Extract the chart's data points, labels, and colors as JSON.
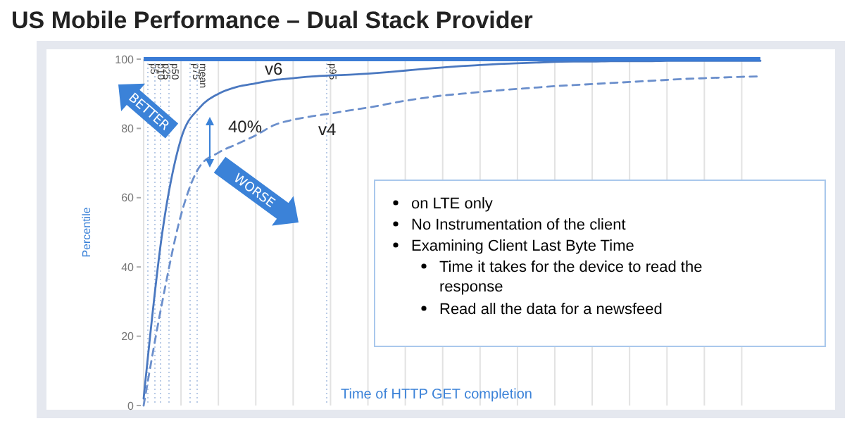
{
  "chart_data": {
    "type": "line",
    "title": "US Mobile Performance – Dual Stack Provider",
    "xlabel": "Time of HTTP GET completion",
    "ylabel": "Percentile",
    "categories": [
      null,
      null,
      null,
      null,
      null,
      null,
      null,
      null,
      null,
      null,
      null,
      null,
      null,
      null,
      null,
      null,
      null,
      null,
      null,
      null,
      null,
      null,
      null,
      null,
      null,
      null,
      null,
      null,
      null,
      null,
      null,
      null,
      null,
      null
    ],
    "series": [
      {
        "name": "v6",
        "color": "#4a78c0",
        "line_style": "solid",
        "values": [
          2,
          50,
          77,
          86,
          90,
          92,
          93,
          94,
          94.5,
          95,
          95.3,
          95.5,
          95.8,
          96.2,
          96.7,
          97.2,
          97.6,
          98,
          98.3,
          98.6,
          98.8,
          99,
          99.2,
          99.3,
          99.3,
          99.4,
          99.4,
          99.4,
          99.5,
          99.5,
          99.5,
          99.5,
          99.5,
          99.5
        ]
      },
      {
        "name": "v4",
        "color": "#6b8fcc",
        "line_style": "dashed",
        "values": [
          0,
          30,
          55,
          69,
          73,
          75.5,
          78,
          81,
          82.5,
          83.5,
          84.3,
          85.2,
          86,
          87,
          88,
          88.8,
          89.5,
          90,
          90.5,
          91,
          91.4,
          91.8,
          92.2,
          92.5,
          92.8,
          93.1,
          93.4,
          93.7,
          94,
          94.3,
          94.5,
          94.7,
          94.9,
          95
        ]
      }
    ],
    "ylim": [
      0,
      100
    ],
    "yticks": [
      0,
      20,
      40,
      60,
      80,
      100
    ],
    "grid": "x",
    "marker": "none",
    "ref_lines": [
      {
        "axis": "y",
        "value": 100,
        "color": "#3a7bd5"
      }
    ],
    "annotations": [
      "p5",
      "p10",
      "p25",
      "p50",
      "p75",
      "mean",
      "p95",
      "40%",
      "BETTER",
      "WORSE",
      "on LTE only",
      "No Instrumentation of the client",
      "Examining Client Last Byte Time",
      "Time it takes for the device to read the response",
      "Read all the data for a newsfeed"
    ]
  }
}
